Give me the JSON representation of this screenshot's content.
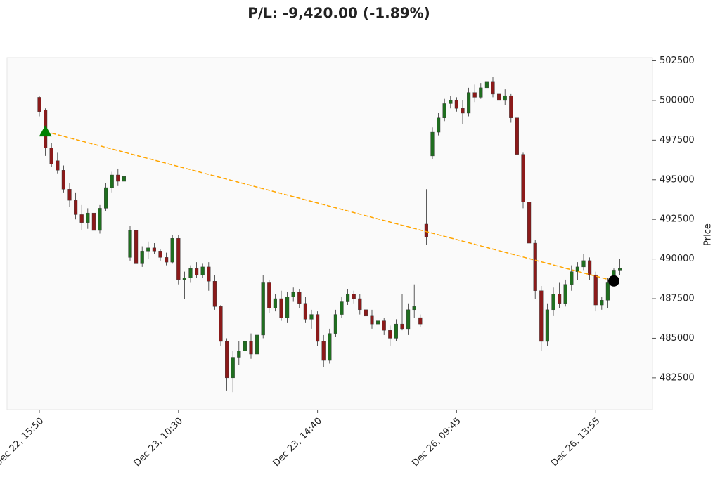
{
  "chart_data": {
    "type": "candlestick",
    "title": "P/L: -9,420.00 (-1.89%)",
    "y_label": "Price",
    "up_color": "#1f6e1f",
    "down_color": "#8b1a1a",
    "ylim": [
      480500,
      502700
    ],
    "yticks": [
      482500,
      485000,
      487500,
      490000,
      492500,
      495000,
      497500,
      500000,
      502500
    ],
    "categories": [
      "Dec 22, 15:50",
      null,
      null,
      null,
      null,
      null,
      null,
      null,
      null,
      null,
      null,
      null,
      null,
      null,
      null,
      null,
      null,
      null,
      null,
      null,
      null,
      null,
      null,
      "Dec 23, 10:30",
      null,
      null,
      null,
      null,
      null,
      null,
      null,
      null,
      null,
      null,
      null,
      null,
      null,
      null,
      null,
      null,
      null,
      null,
      null,
      null,
      null,
      null,
      "Dec 23, 14:40",
      null,
      null,
      null,
      null,
      null,
      null,
      null,
      null,
      null,
      null,
      null,
      null,
      null,
      null,
      null,
      null,
      null,
      null,
      null,
      null,
      null,
      null,
      "Dec 26, 09:45",
      null,
      null,
      null,
      null,
      null,
      null,
      null,
      null,
      null,
      null,
      null,
      null,
      null,
      null,
      null,
      null,
      null,
      null,
      null,
      null,
      null,
      null,
      "Dec 26, 13:55",
      null,
      null,
      null,
      null
    ],
    "ohlc": [
      [
        500200,
        500300,
        499000,
        499300
      ],
      [
        499400,
        499500,
        496500,
        497000
      ],
      [
        497000,
        497300,
        495800,
        496000
      ],
      [
        496200,
        496700,
        495400,
        495600
      ],
      [
        495600,
        495900,
        494200,
        494400
      ],
      [
        494400,
        494800,
        493300,
        493700
      ],
      [
        493700,
        494200,
        492500,
        492800
      ],
      [
        492800,
        493400,
        491800,
        492300
      ],
      [
        492300,
        493200,
        491900,
        492900
      ],
      [
        492900,
        493100,
        491300,
        491800
      ],
      [
        491800,
        493400,
        491600,
        493200
      ],
      [
        493200,
        494800,
        493000,
        494500
      ],
      [
        494500,
        495500,
        494200,
        495300
      ],
      [
        495300,
        495700,
        494600,
        494900
      ],
      [
        494900,
        495700,
        494500,
        495200
      ],
      [
        490100,
        492100,
        489900,
        491800
      ],
      [
        491800,
        492000,
        489300,
        489700
      ],
      [
        489700,
        490800,
        489500,
        490500
      ],
      [
        490500,
        491100,
        490000,
        490700
      ],
      [
        490700,
        491000,
        490300,
        490500
      ],
      [
        490500,
        490600,
        489900,
        490100
      ],
      [
        490100,
        490400,
        489600,
        489800
      ],
      [
        489800,
        491500,
        489700,
        491300
      ],
      [
        491300,
        491500,
        488400,
        488700
      ],
      [
        488700,
        489200,
        487500,
        488800
      ],
      [
        488800,
        489600,
        488500,
        489400
      ],
      [
        489400,
        489800,
        488800,
        489000
      ],
      [
        489000,
        489700,
        488800,
        489500
      ],
      [
        489500,
        489800,
        488000,
        488600
      ],
      [
        488600,
        489000,
        486800,
        487000
      ],
      [
        487000,
        487100,
        484500,
        484800
      ],
      [
        484800,
        485000,
        481700,
        482500
      ],
      [
        482500,
        484200,
        481600,
        483800
      ],
      [
        483800,
        484800,
        483300,
        484200
      ],
      [
        484200,
        485200,
        483800,
        484800
      ],
      [
        484800,
        485300,
        483700,
        484000
      ],
      [
        484000,
        485500,
        483800,
        485200
      ],
      [
        485200,
        489000,
        485000,
        488500
      ],
      [
        488500,
        488700,
        486600,
        486900
      ],
      [
        486900,
        487800,
        486700,
        487500
      ],
      [
        487500,
        488000,
        486100,
        486300
      ],
      [
        486300,
        487900,
        486000,
        487600
      ],
      [
        487600,
        488200,
        487300,
        487900
      ],
      [
        487900,
        488100,
        486900,
        487200
      ],
      [
        487200,
        487600,
        486000,
        486200
      ],
      [
        486200,
        486800,
        485600,
        486500
      ],
      [
        486500,
        486700,
        484500,
        484800
      ],
      [
        484800,
        485200,
        483200,
        483600
      ],
      [
        483600,
        485600,
        483400,
        485300
      ],
      [
        485300,
        486800,
        485100,
        486500
      ],
      [
        486500,
        487600,
        486300,
        487300
      ],
      [
        487300,
        488100,
        487100,
        487800
      ],
      [
        487800,
        488000,
        487200,
        487500
      ],
      [
        487500,
        487800,
        486500,
        486800
      ],
      [
        486800,
        487200,
        486000,
        486400
      ],
      [
        486400,
        486800,
        485600,
        485900
      ],
      [
        485900,
        486400,
        485300,
        486100
      ],
      [
        486100,
        486300,
        485200,
        485500
      ],
      [
        485500,
        485800,
        484500,
        485000
      ],
      [
        485000,
        486200,
        484800,
        485900
      ],
      [
        485900,
        487800,
        485500,
        485600
      ],
      [
        485600,
        487200,
        485200,
        486800
      ],
      [
        486800,
        488400,
        486300,
        487000
      ],
      [
        486300,
        486500,
        485700,
        485900
      ],
      [
        492200,
        494400,
        490900,
        491400
      ],
      [
        496500,
        498300,
        496300,
        498000
      ],
      [
        498000,
        499200,
        497800,
        498900
      ],
      [
        498900,
        500100,
        498700,
        499800
      ],
      [
        499800,
        500300,
        499500,
        500000
      ],
      [
        500000,
        500200,
        499300,
        499500
      ],
      [
        499500,
        500000,
        498500,
        499200
      ],
      [
        499200,
        500800,
        499000,
        500500
      ],
      [
        500500,
        501000,
        499900,
        500200
      ],
      [
        500200,
        501100,
        500100,
        500800
      ],
      [
        500800,
        501600,
        500600,
        501200
      ],
      [
        501200,
        501500,
        500200,
        500400
      ],
      [
        500400,
        500600,
        499700,
        500000
      ],
      [
        500000,
        500700,
        499700,
        500300
      ],
      [
        500300,
        500400,
        498600,
        498900
      ],
      [
        498900,
        499000,
        496300,
        496600
      ],
      [
        496600,
        496700,
        493200,
        493600
      ],
      [
        493600,
        493700,
        490500,
        491000
      ],
      [
        491000,
        491200,
        487500,
        488000
      ],
      [
        488000,
        488300,
        484200,
        484800
      ],
      [
        484800,
        487200,
        484500,
        486800
      ],
      [
        486800,
        488200,
        486400,
        487800
      ],
      [
        487800,
        488500,
        486900,
        487200
      ],
      [
        487200,
        488700,
        487000,
        488400
      ],
      [
        488400,
        489600,
        488000,
        489200
      ],
      [
        489200,
        489800,
        488700,
        489500
      ],
      [
        489500,
        490300,
        489300,
        489900
      ],
      [
        489900,
        490100,
        488700,
        489000
      ],
      [
        489000,
        489200,
        486700,
        487100
      ],
      [
        487100,
        487600,
        486800,
        487400
      ],
      [
        487400,
        488800,
        486900,
        488500
      ],
      [
        488500,
        489400,
        488300,
        489300
      ],
      [
        489300,
        490000,
        489000,
        489400
      ]
    ],
    "entry": {
      "at": 1,
      "price": 498040,
      "color": "#008000"
    },
    "exit": {
      "at": 95,
      "price": 488620,
      "color": "#000000"
    },
    "trade_line_color": "#ffa500"
  }
}
